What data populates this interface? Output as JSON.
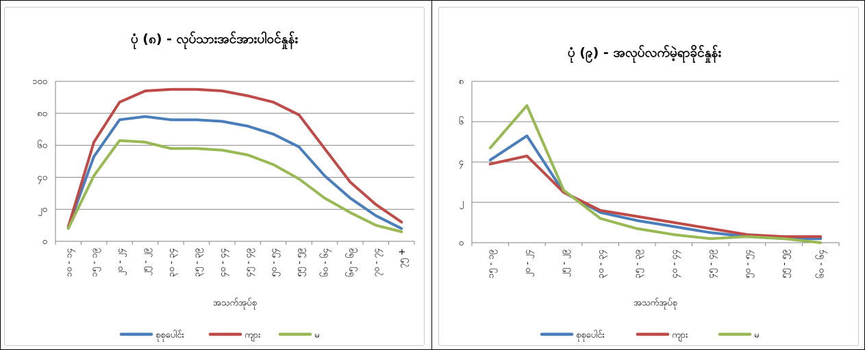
{
  "chart_data": [
    {
      "type": "line",
      "title": "ပုံ (၈) - လုပ်သားအင်အားပါဝင်နှုန်း",
      "xlabel": "အသက်အုပ်စု",
      "ylabel": "",
      "ylim": [
        0,
        100
      ],
      "yticks": [
        "၀",
        "၂၀",
        "၄၀",
        "၆၀",
        "၈၀",
        "၁၀၀"
      ],
      "categories": [
        "၁၀ - ၁၄",
        "၁၅ - ၁၉",
        "၂၀ - ၂၄",
        "၂၅ - ၂၉",
        "၃၀ - ၃၄",
        "၃၅ - ၃၉",
        "၄၀ - ၄၄",
        "၄၅ - ၄၉",
        "၅၀ - ၅၄",
        "၅၅ - ၅၉",
        "၆၀ - ၆၄",
        "၆၅ - ၆၉",
        "၇၀ - ၇၄",
        "၇၅ +"
      ],
      "grid": true,
      "legend_position": "bottom",
      "series": [
        {
          "name": "စုစုပေါင်း",
          "color": "#4a7ebb",
          "values": [
            9,
            53,
            76,
            78,
            76,
            76,
            75,
            72,
            67,
            59,
            41,
            27,
            16,
            8
          ]
        },
        {
          "name": "ကျား",
          "color": "#be4b48",
          "values": [
            9,
            62,
            87,
            94,
            95,
            95,
            94,
            91,
            87,
            79,
            58,
            37,
            23,
            12
          ]
        },
        {
          "name": "မ",
          "color": "#98b954",
          "values": [
            8,
            41,
            63,
            62,
            58,
            58,
            57,
            54,
            48,
            39,
            27,
            18,
            10,
            6
          ]
        }
      ]
    },
    {
      "type": "line",
      "title": "ပုံ (၉) - အလုပ်လက်မဲ့ရာခိုင်နှုန်း",
      "xlabel": "အသက်အုပ်စု",
      "ylabel": "",
      "ylim": [
        0,
        8
      ],
      "yticks": [
        "၀",
        "၂",
        "၄",
        "၆",
        "၈"
      ],
      "categories": [
        "၁၅ - ၁၉",
        "၂၀ - ၂၄",
        "၂၅ - ၂၉",
        "၃၀ - ၃၄",
        "၃၅ - ၃၉",
        "၄၀ - ၄၄",
        "၄၅ - ၄၉",
        "၅၀ - ၅၄",
        "၅၅ - ၅၉",
        "၆၀ - ၆၄"
      ],
      "grid": true,
      "legend_position": "bottom",
      "series": [
        {
          "name": "စုစုပေါင်း",
          "color": "#4a7ebb",
          "values": [
            4.1,
            5.3,
            2.5,
            1.5,
            1.1,
            0.8,
            0.5,
            0.3,
            0.2,
            0.2
          ]
        },
        {
          "name": "ကျား",
          "color": "#be4b48",
          "values": [
            3.9,
            4.3,
            2.5,
            1.6,
            1.3,
            1.0,
            0.7,
            0.4,
            0.3,
            0.3
          ]
        },
        {
          "name": "မ",
          "color": "#98b954",
          "values": [
            4.7,
            6.8,
            2.6,
            1.2,
            0.7,
            0.4,
            0.2,
            0.3,
            0.2,
            0.0
          ]
        }
      ]
    }
  ]
}
